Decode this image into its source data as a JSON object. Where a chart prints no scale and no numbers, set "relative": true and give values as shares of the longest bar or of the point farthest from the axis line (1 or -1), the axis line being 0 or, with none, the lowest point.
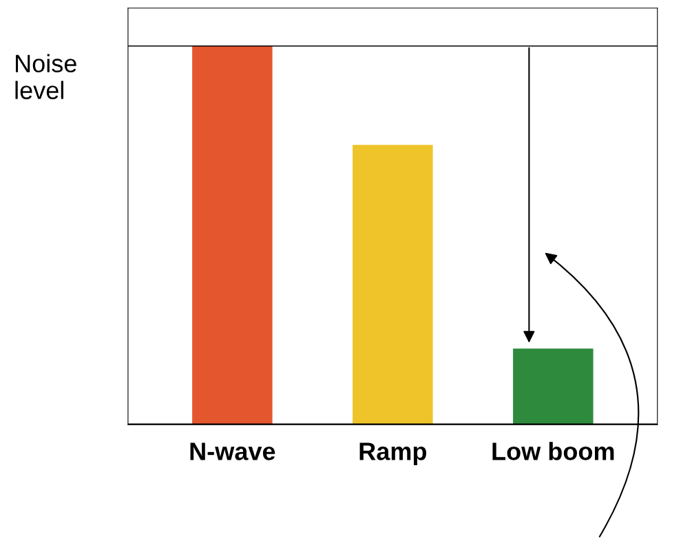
{
  "chart_data": {
    "type": "bar",
    "relative": true,
    "ylabel": "Noise level",
    "categories": [
      "N-wave",
      "Ramp",
      "Low boom"
    ],
    "values": [
      1,
      0.739,
      0.201
    ],
    "colors": [
      "#e4572e",
      "#eec42a",
      "#2e8b3e"
    ],
    "ref_lines": [
      {
        "axis": "y",
        "value": 1,
        "color": "#000000"
      }
    ],
    "grid": false,
    "legend": false
  }
}
